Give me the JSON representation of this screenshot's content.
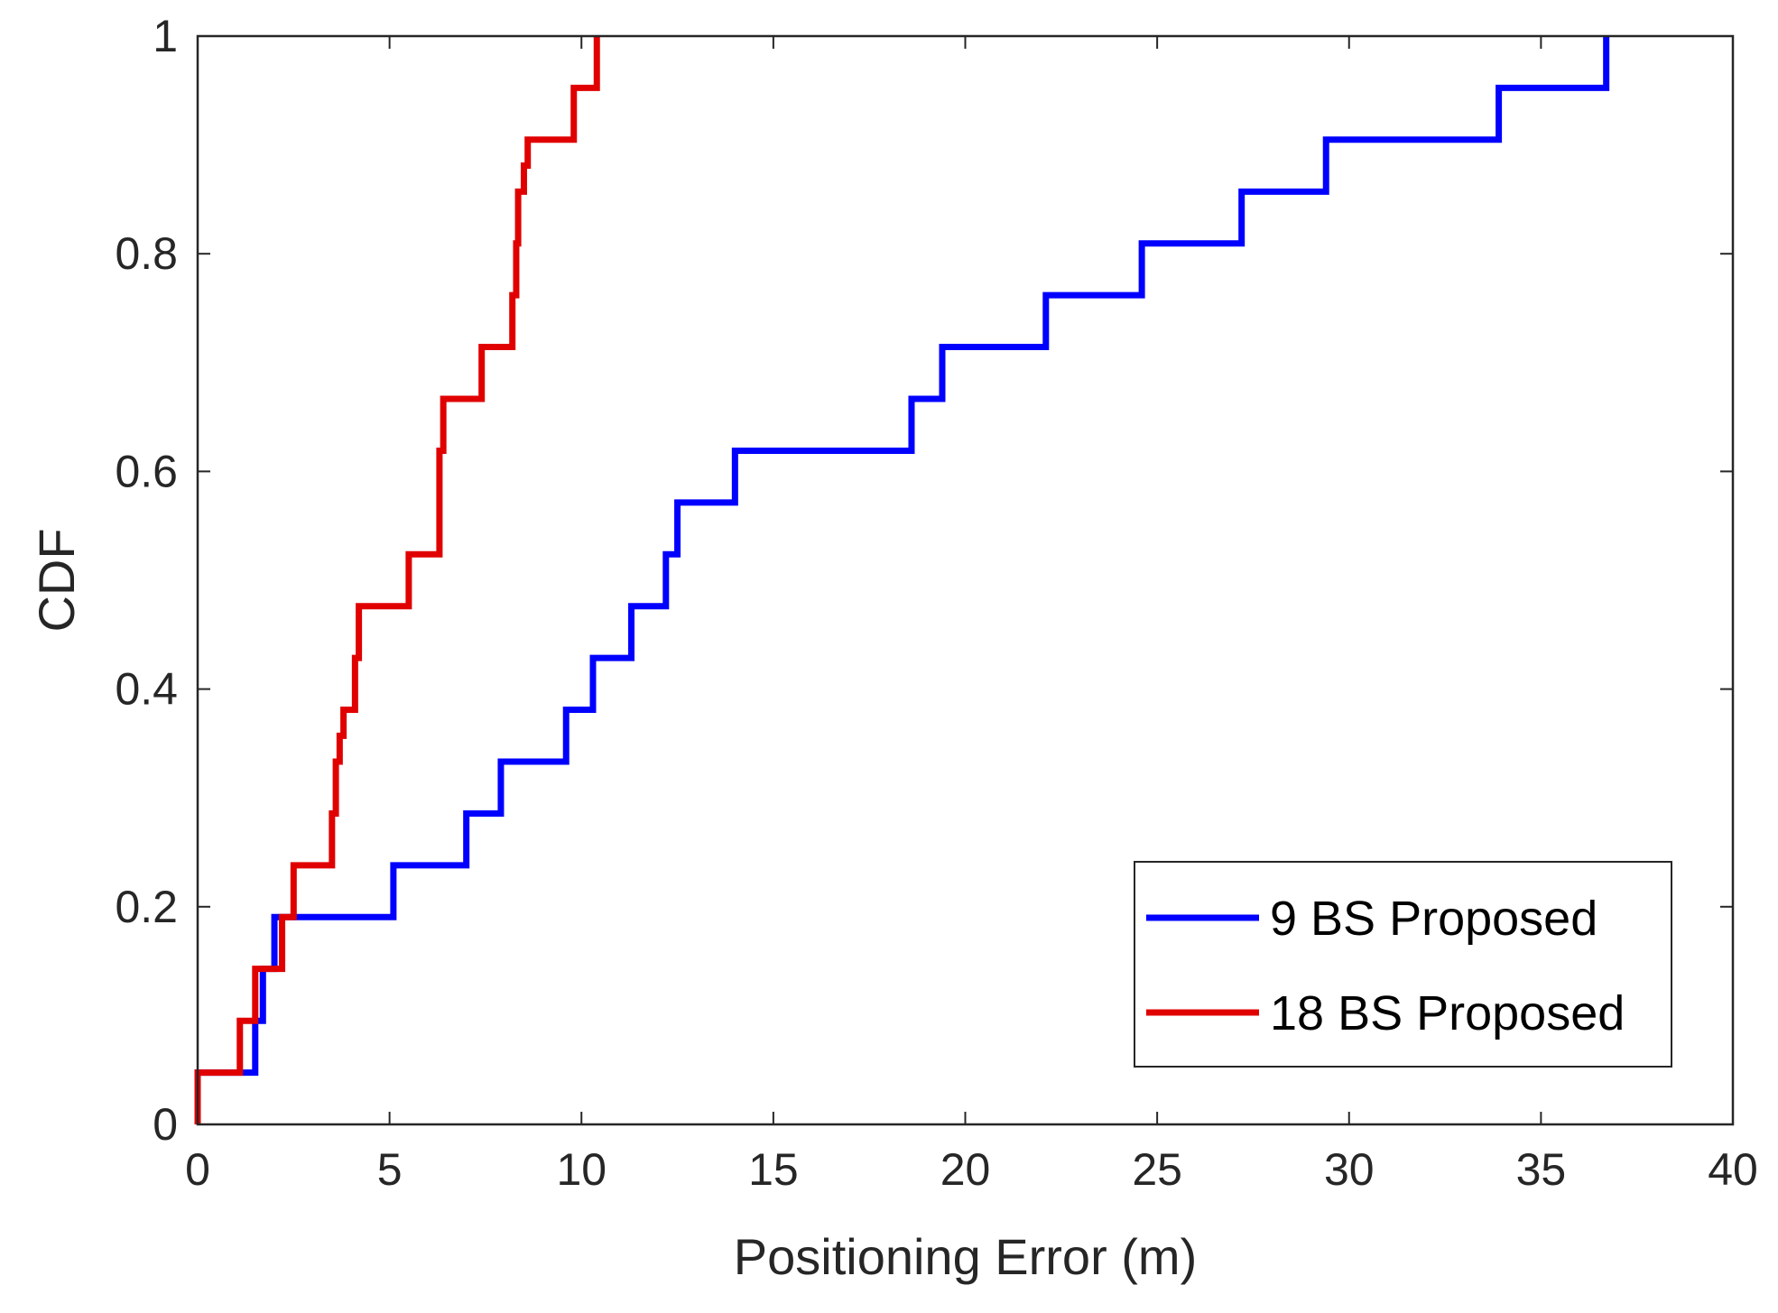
{
  "chart_data": {
    "type": "line",
    "step": true,
    "title": "",
    "xlabel": "Positioning Error (m)",
    "ylabel": "CDF",
    "xlim": [
      0,
      40
    ],
    "ylim": [
      0,
      1
    ],
    "xticks": [
      0,
      5,
      10,
      15,
      20,
      25,
      30,
      35,
      40
    ],
    "yticks": [
      0,
      0.2,
      0.4,
      0.6,
      0.8,
      1
    ],
    "xtick_labels": [
      "0",
      "5",
      "10",
      "15",
      "20",
      "25",
      "30",
      "35",
      "40"
    ],
    "ytick_labels": [
      "0",
      "0.2",
      "0.4",
      "0.6",
      "0.8",
      "1"
    ],
    "grid": false,
    "legend_position": "bottom-right",
    "series": [
      {
        "name": "9 BS Proposed",
        "color": "#0000ff",
        "x": [
          0,
          1.5,
          1.7,
          2.0,
          5.1,
          7.0,
          7.9,
          9.6,
          10.3,
          11.3,
          12.2,
          12.5,
          14.0,
          18.6,
          19.4,
          22.1,
          24.6,
          27.2,
          29.4,
          33.9,
          36.7
        ],
        "y": [
          0.0476,
          0.0952,
          0.1429,
          0.1905,
          0.2381,
          0.2857,
          0.3333,
          0.381,
          0.4286,
          0.4762,
          0.5238,
          0.5714,
          0.619,
          0.6667,
          0.7143,
          0.7619,
          0.8095,
          0.8571,
          0.9048,
          0.9524,
          1.0
        ]
      },
      {
        "name": "18 BS Proposed",
        "color": "#e00000",
        "x": [
          0,
          1.1,
          1.5,
          2.2,
          2.5,
          3.5,
          3.6,
          3.7,
          3.8,
          4.1,
          4.2,
          5.5,
          6.3,
          6.4,
          7.4,
          8.2,
          8.3,
          8.35,
          8.5,
          8.6,
          9.8,
          10.4
        ],
        "y": [
          0.0476,
          0.0952,
          0.1429,
          0.1905,
          0.2381,
          0.2857,
          0.3333,
          0.3571,
          0.381,
          0.4286,
          0.4762,
          0.5238,
          0.619,
          0.6667,
          0.7143,
          0.7619,
          0.8095,
          0.8571,
          0.881,
          0.9048,
          0.9524,
          1.0
        ]
      }
    ]
  }
}
